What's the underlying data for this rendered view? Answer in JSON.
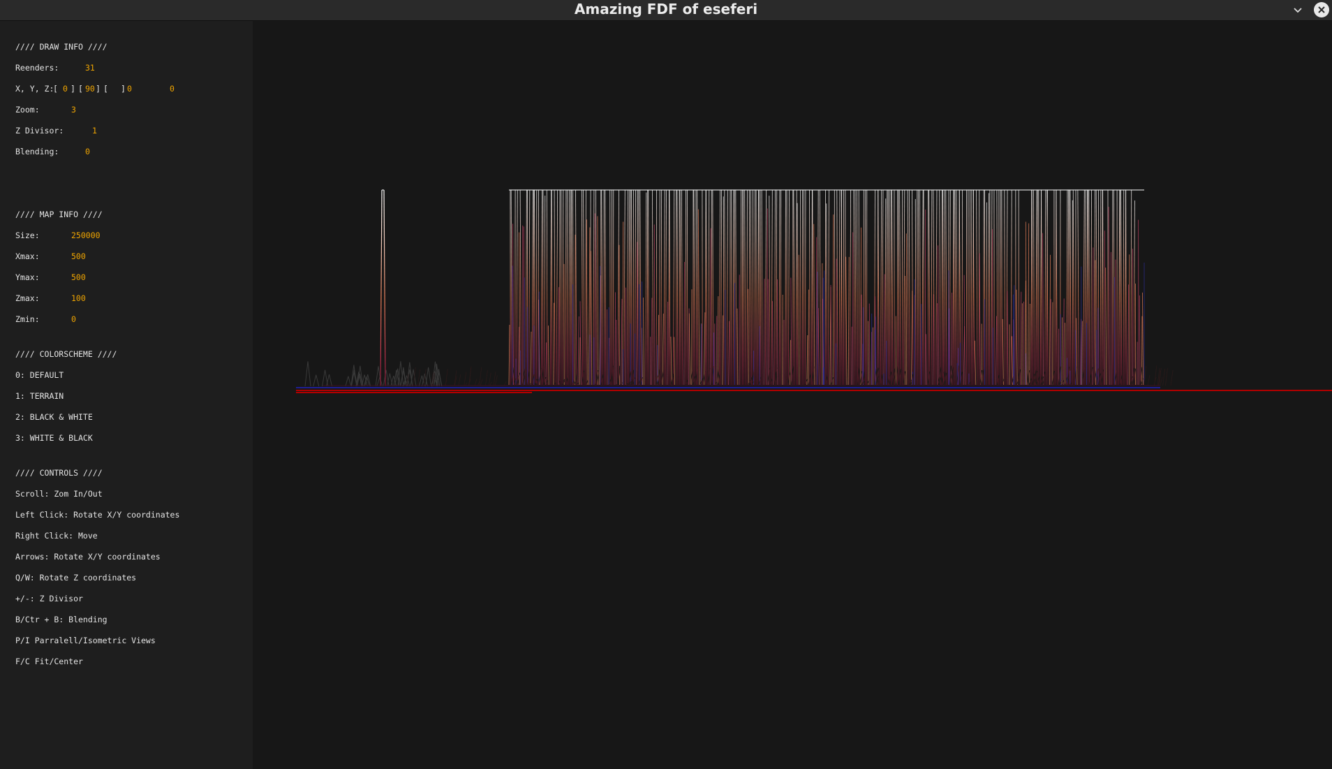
{
  "window": {
    "title": "Amazing FDF of eseferi"
  },
  "draw_info": {
    "header": "//// DRAW INFO ////",
    "rerenders_label": "Reenders:",
    "rerenders_value": "31",
    "xyz_label": "X, Y, Z:",
    "x_value": "0",
    "y_value": "90",
    "z_value": "0",
    "z2_value": "0",
    "zoom_label": "Zoom:",
    "zoom_value": "3",
    "zdiv_label": "Z Divisor:",
    "zdiv_value": "1",
    "blend_label": "Blending:",
    "blend_value": "0"
  },
  "map_info": {
    "header": "//// MAP INFO ////",
    "size_label": "Size:",
    "size_value": "250000",
    "xmax_label": "Xmax:",
    "xmax_value": "500",
    "ymax_label": "Ymax:",
    "ymax_value": "500",
    "zmax_label": "Zmax:",
    "zmax_value": "100",
    "zmin_label": "Zmin:",
    "zmin_value": "0"
  },
  "colorscheme": {
    "header": "//// COLORSCHEME ////",
    "items": [
      "0: DEFAULT",
      "1: TERRAIN",
      "2: BLACK & WHITE",
      "3: WHITE & BLACK"
    ]
  },
  "controls": {
    "header": "//// CONTROLS ////",
    "items": [
      "Scroll: Zom In/Out",
      "Left Click: Rotate X/Y coordinates",
      "Right Click: Move",
      "Arrows: Rotate X/Y coordinates",
      "Q/W: Rotate Z coordinates",
      "+/-: Z Divisor",
      "B/Ctr + B: Blending",
      "P/I Parralell/Isometric Views",
      "F/C Fit/Center"
    ]
  },
  "colors": {
    "accent": "#f0a500",
    "peak_top": "#ffffff",
    "peak_mid": "#e8805a",
    "peak_low": "#a0203a",
    "base_red": "#b00000",
    "base_blue": "#2020a0"
  },
  "icons": {
    "minimize": "chevron-down-icon",
    "close": "close-icon"
  }
}
